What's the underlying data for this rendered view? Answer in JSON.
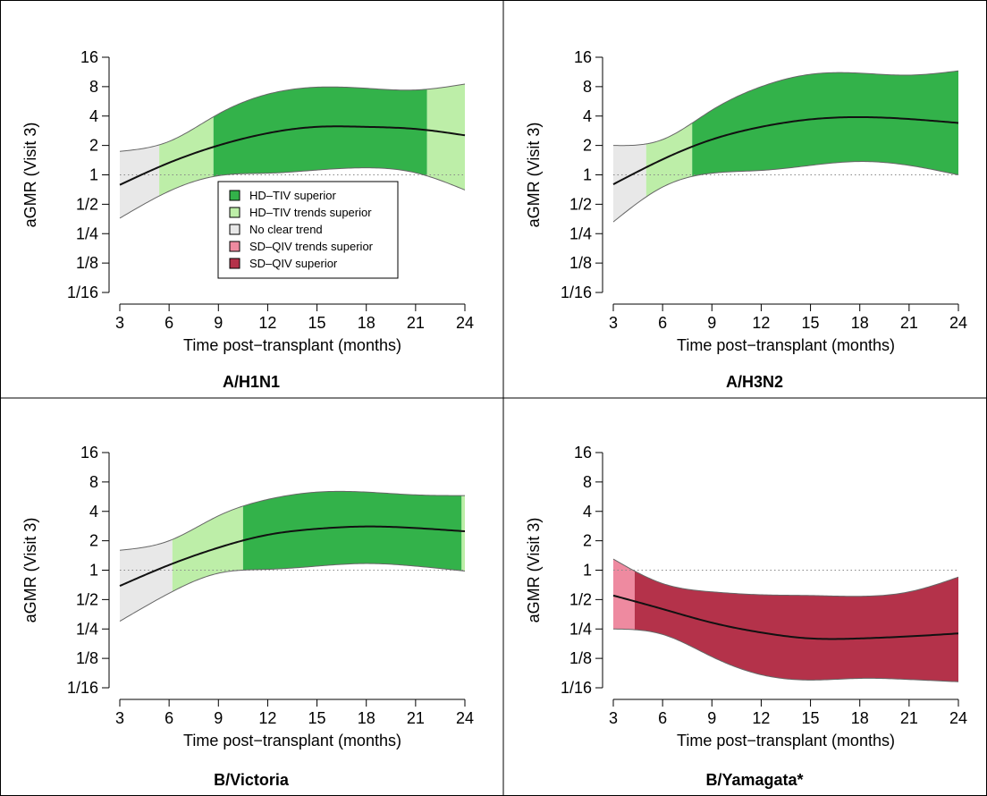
{
  "figure": {
    "legend": {
      "entries": [
        {
          "label": "HD–TIV superior",
          "color": "#33b24a"
        },
        {
          "label": "HD–TIV trends superior",
          "color": "#bdeea8"
        },
        {
          "label": "No clear trend",
          "color": "#e8e8e8"
        },
        {
          "label": "SD–QIV trends superior",
          "color": "#ee8aa0"
        },
        {
          "label": "SD–QIV superior",
          "color": "#b4324a"
        }
      ]
    }
  },
  "chart_data": [
    {
      "type": "area",
      "title": "A/H1N1",
      "xlabel": "Time post−transplant (months)",
      "ylabel": "aGMR (Visit 3)",
      "xlim": [
        3,
        24
      ],
      "ylim_log2": [
        -4,
        4
      ],
      "scale_y": "log2",
      "x_ticks": [
        "3",
        "6",
        "9",
        "12",
        "15",
        "18",
        "21",
        "24"
      ],
      "y_ticks": [
        "16",
        "8",
        "4",
        "2",
        "1",
        "1/2",
        "1/4",
        "1/8",
        "1/16"
      ],
      "reference_line": 1,
      "x": [
        3,
        6,
        9,
        12,
        15,
        18,
        21,
        24
      ],
      "estimate": [
        0.79,
        1.33,
        2.0,
        2.67,
        3.1,
        3.1,
        2.95,
        2.54
      ],
      "lower": [
        0.36,
        0.68,
        0.98,
        1.04,
        1.12,
        1.18,
        1.05,
        0.7
      ],
      "upper": [
        1.74,
        2.2,
        4.2,
        6.7,
        7.9,
        7.7,
        7.4,
        8.5
      ],
      "regions": [
        {
          "from": 3,
          "to": 5.4,
          "category": "No clear trend"
        },
        {
          "from": 5.4,
          "to": 8.7,
          "category": "HD–TIV trends superior"
        },
        {
          "from": 8.7,
          "to": 21.7,
          "category": "HD–TIV superior"
        },
        {
          "from": 21.7,
          "to": 24,
          "category": "HD–TIV trends superior"
        }
      ],
      "legend": "inside"
    },
    {
      "type": "area",
      "title": "A/H3N2",
      "xlabel": "Time post−transplant (months)",
      "ylabel": "aGMR (Visit 3)",
      "xlim": [
        3,
        24
      ],
      "ylim_log2": [
        -4,
        4
      ],
      "scale_y": "log2",
      "x_ticks": [
        "3",
        "6",
        "9",
        "12",
        "15",
        "18",
        "21",
        "24"
      ],
      "y_ticks": [
        "16",
        "8",
        "4",
        "2",
        "1",
        "1/2",
        "1/4",
        "1/8",
        "1/16"
      ],
      "reference_line": 1,
      "x": [
        3,
        6,
        9,
        12,
        15,
        18,
        21,
        24
      ],
      "estimate": [
        0.8,
        1.44,
        2.3,
        3.1,
        3.7,
        3.9,
        3.73,
        3.4
      ],
      "lower": [
        0.33,
        0.75,
        1.04,
        1.11,
        1.25,
        1.37,
        1.25,
        1.0
      ],
      "upper": [
        2.0,
        2.3,
        4.6,
        8.0,
        10.7,
        11.0,
        10.5,
        11.6
      ],
      "regions": [
        {
          "from": 3,
          "to": 5.0,
          "category": "No clear trend"
        },
        {
          "from": 5.0,
          "to": 7.8,
          "category": "HD–TIV trends superior"
        },
        {
          "from": 7.8,
          "to": 24,
          "category": "HD–TIV superior"
        }
      ]
    },
    {
      "type": "area",
      "title": "B/Victoria",
      "xlabel": "Time post−transplant (months)",
      "ylabel": "aGMR (Visit 3)",
      "xlim": [
        3,
        24
      ],
      "ylim_log2": [
        -4,
        4
      ],
      "scale_y": "log2",
      "x_ticks": [
        "3",
        "6",
        "9",
        "12",
        "15",
        "18",
        "21",
        "24"
      ],
      "y_ticks": [
        "16",
        "8",
        "4",
        "2",
        "1",
        "1/2",
        "1/4",
        "1/8",
        "1/16"
      ],
      "reference_line": 1,
      "x": [
        3,
        6,
        9,
        12,
        15,
        18,
        21,
        24
      ],
      "estimate": [
        0.69,
        1.13,
        1.7,
        2.3,
        2.65,
        2.8,
        2.7,
        2.5
      ],
      "lower": [
        0.3,
        0.58,
        0.93,
        1.02,
        1.1,
        1.17,
        1.1,
        0.98
      ],
      "upper": [
        1.6,
        2.0,
        3.6,
        5.3,
        6.3,
        6.3,
        5.9,
        5.8
      ],
      "regions": [
        {
          "from": 3,
          "to": 6.2,
          "category": "No clear trend"
        },
        {
          "from": 6.2,
          "to": 10.5,
          "category": "HD–TIV trends superior"
        },
        {
          "from": 10.5,
          "to": 23.8,
          "category": "HD–TIV superior"
        },
        {
          "from": 23.8,
          "to": 24,
          "category": "HD–TIV trends superior"
        }
      ]
    },
    {
      "type": "area",
      "title": "B/Yamagata*",
      "xlabel": "Time post−transplant (months)",
      "ylabel": "aGMR (Visit 3)",
      "xlim": [
        3,
        24
      ],
      "ylim_log2": [
        -4,
        4
      ],
      "scale_y": "log2",
      "x_ticks": [
        "3",
        "6",
        "9",
        "12",
        "15",
        "18",
        "21",
        "24"
      ],
      "y_ticks": [
        "16",
        "8",
        "4",
        "2",
        "1",
        "1/2",
        "1/4",
        "1/8",
        "1/16"
      ],
      "reference_line": 1,
      "x": [
        3,
        6,
        9,
        12,
        15,
        18,
        21,
        24
      ],
      "estimate": [
        0.55,
        0.4,
        0.29,
        0.23,
        0.2,
        0.2,
        0.21,
        0.225
      ],
      "lower": [
        0.25,
        0.22,
        0.13,
        0.085,
        0.075,
        0.078,
        0.076,
        0.072
      ],
      "upper": [
        1.3,
        0.73,
        0.6,
        0.56,
        0.55,
        0.54,
        0.6,
        0.85
      ],
      "regions": [
        {
          "from": 3,
          "to": 4.3,
          "category": "SD–QIV trends superior"
        },
        {
          "from": 4.3,
          "to": 24,
          "category": "SD–QIV superior"
        }
      ]
    }
  ]
}
